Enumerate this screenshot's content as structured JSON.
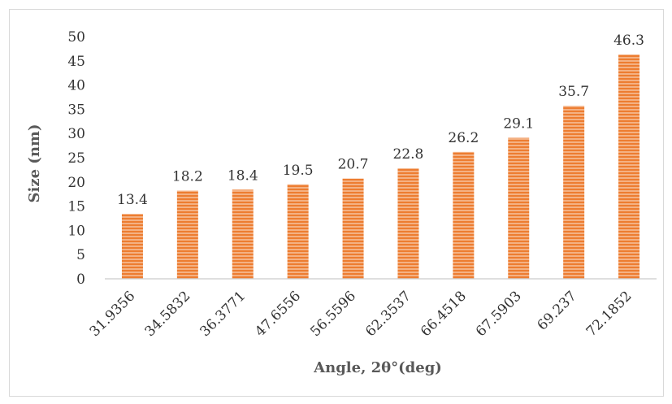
{
  "colors": {
    "bar_fill": "#f4b183",
    "bar_stripe": "#ed7d31",
    "axis_line": "#bfbfbf",
    "text": "#333333",
    "title_text": "#595959"
  },
  "chart_data": {
    "type": "bar",
    "categories": [
      "31.9356",
      "34.5832",
      "36.3771",
      "47.6556",
      "56.5596",
      "62.3537",
      "66.4518",
      "67.5903",
      "69.237",
      "72.1852"
    ],
    "values": [
      13.4,
      18.2,
      18.4,
      19.5,
      20.7,
      22.8,
      26.2,
      29.1,
      35.7,
      46.3
    ],
    "data_labels": [
      "13.4",
      "18.2",
      "18.4",
      "19.5",
      "20.7",
      "22.8",
      "26.2",
      "29.1",
      "35.7",
      "46.3"
    ],
    "xlabel": "Angle, 2θ°(deg)",
    "ylabel": "Size (nm)",
    "ylim": [
      0,
      50
    ],
    "yticks": [
      "0",
      "5",
      "10",
      "15",
      "20",
      "25",
      "30",
      "35",
      "40",
      "45",
      "50"
    ],
    "grid": false,
    "legend": "none",
    "bar_pattern": "horizontal-stripes"
  }
}
